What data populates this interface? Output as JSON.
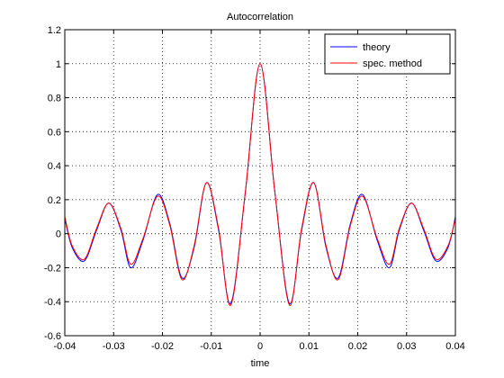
{
  "chart_data": {
    "type": "line",
    "title": "Autocorrelation",
    "xlabel": "time",
    "ylabel": "",
    "xlim": [
      -0.04,
      0.04
    ],
    "ylim": [
      -0.6,
      1.2
    ],
    "xticks": [
      -0.04,
      -0.03,
      -0.02,
      -0.01,
      0,
      0.01,
      0.02,
      0.03,
      0.04
    ],
    "xtick_labels": [
      "-0.04",
      "-0.03",
      "-0.02",
      "-0.01",
      "0",
      "0.01",
      "0.02",
      "0.03",
      "0.04"
    ],
    "yticks": [
      -0.6,
      -0.4,
      -0.2,
      0,
      0.2,
      0.4,
      0.6,
      0.8,
      1,
      1.2
    ],
    "ytick_labels": [
      "-0.6",
      "-0.4",
      "-0.2",
      "0",
      "0.2",
      "0.4",
      "0.6",
      "0.8",
      "1",
      "1.2"
    ],
    "grid": true,
    "grid_style": "dotted",
    "legend_position": "top-right",
    "series": [
      {
        "name": "theory",
        "color": "#0000ff",
        "x": [
          -0.04,
          -0.0385,
          -0.036,
          -0.0335,
          -0.031,
          -0.0285,
          -0.0265,
          -0.024,
          -0.021,
          -0.0185,
          -0.016,
          -0.0135,
          -0.011,
          -0.0085,
          -0.006,
          -0.003,
          0,
          0.003,
          0.006,
          0.0085,
          0.011,
          0.0135,
          0.016,
          0.0185,
          0.021,
          0.024,
          0.0265,
          0.0285,
          0.031,
          0.0335,
          0.036,
          0.0385,
          0.04
        ],
        "y": [
          0.09,
          -0.08,
          -0.16,
          0.02,
          0.18,
          0.02,
          -0.2,
          -0.04,
          0.23,
          0.06,
          -0.26,
          -0.08,
          0.3,
          0.02,
          -0.41,
          0.25,
          1.0,
          0.25,
          -0.41,
          0.02,
          0.3,
          -0.08,
          -0.26,
          0.06,
          0.23,
          -0.04,
          -0.2,
          0.02,
          0.18,
          0.02,
          -0.16,
          -0.08,
          0.1
        ]
      },
      {
        "name": "spec. method",
        "color": "#ff0000",
        "x": [
          -0.04,
          -0.0385,
          -0.036,
          -0.0335,
          -0.031,
          -0.0285,
          -0.0265,
          -0.024,
          -0.021,
          -0.0185,
          -0.016,
          -0.0135,
          -0.011,
          -0.0085,
          -0.006,
          -0.003,
          0,
          0.003,
          0.006,
          0.0085,
          0.011,
          0.0135,
          0.016,
          0.0185,
          0.021,
          0.024,
          0.0265,
          0.0285,
          0.031,
          0.0335,
          0.036,
          0.0385,
          0.04
        ],
        "y": [
          0.1,
          -0.07,
          -0.15,
          0.03,
          0.18,
          0.03,
          -0.18,
          -0.03,
          0.22,
          0.05,
          -0.27,
          -0.07,
          0.3,
          0.03,
          -0.42,
          0.25,
          1.0,
          0.25,
          -0.42,
          0.03,
          0.3,
          -0.07,
          -0.27,
          0.05,
          0.22,
          -0.03,
          -0.18,
          0.03,
          0.18,
          0.03,
          -0.15,
          -0.07,
          0.09
        ]
      }
    ]
  }
}
